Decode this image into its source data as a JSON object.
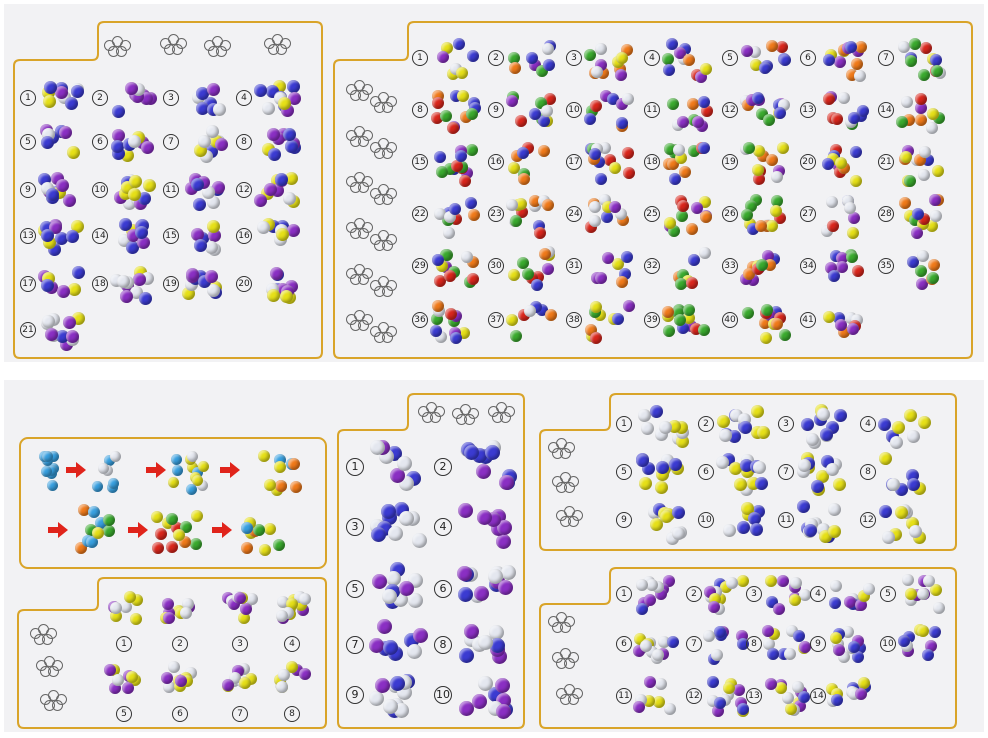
{
  "colors": {
    "frame": "#d9a429",
    "paper": "#f2f2f4",
    "purple": "#8a2fc3",
    "blue": "#3b3bd1",
    "yellow": "#e6e018",
    "clear": "#e4e7ef",
    "orange": "#f07a1a",
    "green": "#3aaa2e",
    "red": "#d9261c",
    "lightblue": "#38a0e0",
    "arrow": "#e0241b"
  },
  "panel_top_left": {
    "numbers": [
      "1",
      "2",
      "3",
      "4",
      "5",
      "6",
      "7",
      "8",
      "9",
      "10",
      "11",
      "12",
      "13",
      "14",
      "15",
      "16",
      "17",
      "18",
      "19",
      "20",
      "21"
    ]
  },
  "panel_top_right": {
    "numbers": [
      "1",
      "2",
      "3",
      "4",
      "5",
      "6",
      "7",
      "8",
      "9",
      "10",
      "11",
      "12",
      "13",
      "14",
      "15",
      "16",
      "17",
      "18",
      "19",
      "20",
      "21",
      "22",
      "23",
      "24",
      "25",
      "26",
      "27",
      "28",
      "29",
      "30",
      "31",
      "32",
      "33",
      "34",
      "35",
      "36",
      "37",
      "38",
      "39",
      "40",
      "41"
    ]
  },
  "panel_bottom_small": {
    "numbers": [
      "1",
      "2",
      "3",
      "4",
      "5",
      "6",
      "7",
      "8"
    ]
  },
  "panel_bottom_middle": {
    "numbers": [
      "1",
      "2",
      "3",
      "4",
      "5",
      "6",
      "7",
      "8",
      "9",
      "10"
    ]
  },
  "panel_bottom_right_top": {
    "numbers": [
      "1",
      "2",
      "3",
      "4",
      "5",
      "6",
      "7",
      "8",
      "9",
      "10",
      "11",
      "12"
    ]
  },
  "panel_bottom_right_bottom": {
    "numbers": [
      "1",
      "2",
      "3",
      "4",
      "5",
      "6",
      "7",
      "8",
      "9",
      "10",
      "11",
      "12",
      "13",
      "14"
    ]
  },
  "icons": {
    "assembly_arrow": "arrow-right-icon",
    "cube_outline": "sphere-cube-outline-icon"
  }
}
